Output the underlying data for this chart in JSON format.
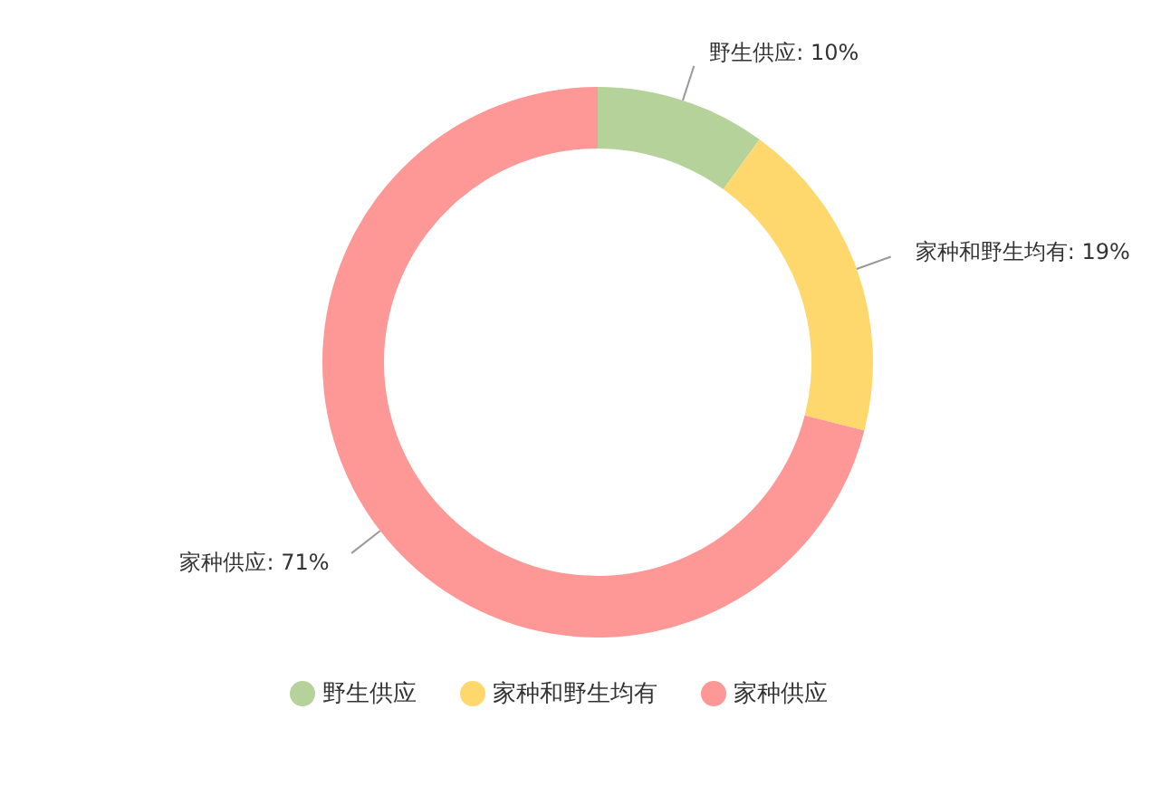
{
  "chart_data": {
    "type": "donut",
    "categories": [
      "野生供应",
      "家种和野生均有",
      "家种供应"
    ],
    "values": [
      10,
      19,
      71
    ],
    "colors": [
      "#b6d29b",
      "#fed86d",
      "#fe9896"
    ],
    "value_labels": [
      "野生供应: 10%",
      "家种和野生均有: 19%",
      "家种供应: 71%"
    ],
    "legend": "bottom"
  }
}
